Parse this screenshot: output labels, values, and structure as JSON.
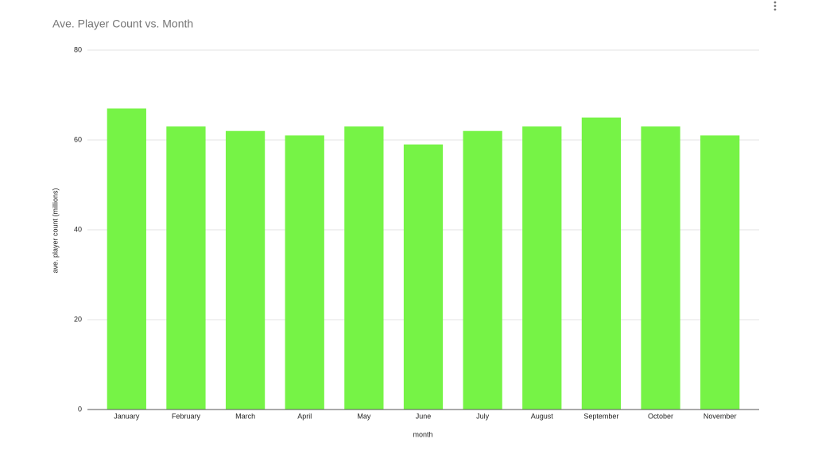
{
  "chart_data": {
    "type": "bar",
    "title": "Ave. Player Count vs. Month",
    "x_label": "month",
    "y_label": "ave. player count (millions)",
    "categories": [
      "January",
      "February",
      "March",
      "April",
      "May",
      "June",
      "July",
      "August",
      "September",
      "October",
      "November"
    ],
    "values": [
      67,
      63,
      62,
      61,
      63,
      59,
      62,
      63,
      65,
      63,
      61
    ],
    "color": "#76f346",
    "ylim": [
      0,
      80
    ],
    "yticks": [
      0,
      20,
      40,
      60,
      80
    ],
    "grid": true
  }
}
